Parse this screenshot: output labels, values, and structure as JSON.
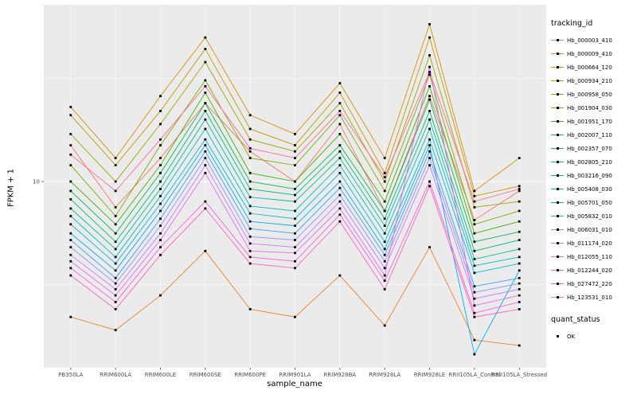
{
  "figure": {
    "panel_bg": "#EBEBEB",
    "grid_color": "#FFFFFF",
    "tick_label_color": "#4D4D4D",
    "point_color": "#000000"
  },
  "chart_data": {
    "type": "line",
    "title": "",
    "xlabel": "sample_name",
    "ylabel": "FPKM + 1",
    "y_scale": "log10",
    "grid": true,
    "legend_position": "right",
    "legend_color_title": "tracking_id",
    "legend_shape_title": "quant_status",
    "points_label": "OK",
    "y_major_ticks": [
      10
    ],
    "y_tick_labels": [
      "10"
    ],
    "y_minor_ticks": [
      3.162,
      31.623
    ],
    "ylim_log10": [
      0.096,
      1.858
    ],
    "categories": [
      "PB350LA",
      "RRIM600LA",
      "RRIM600LE",
      "RRIM600SE",
      "RRIM600PE",
      "RRIM901LA",
      "RRIM928BA",
      "RRIM928LA",
      "RRIM928LE",
      "RRII105LA_Control",
      "RRII105LA_Stressed"
    ],
    "series": [
      {
        "name": "Hb_000003_410",
        "color": "#F8766D",
        "values": [
          15,
          7.5,
          13,
          24,
          14,
          10,
          19,
          7.2,
          26,
          6.5,
          9
        ]
      },
      {
        "name": "Hb_000009_410",
        "color": "#EA8331",
        "values": [
          2.2,
          1.9,
          2.8,
          4.6,
          2.4,
          2.2,
          3.5,
          2.0,
          4.8,
          1.7,
          1.6
        ]
      },
      {
        "name": "Hb_000664_120",
        "color": "#D89000",
        "values": [
          23,
          13,
          26,
          50,
          21,
          17,
          30,
          13,
          58,
          9,
          13
        ]
      },
      {
        "name": "Hb_000934_210",
        "color": "#C09B00",
        "values": [
          21,
          12,
          22,
          44,
          18,
          15,
          27,
          11,
          50,
          8.5,
          9.5
        ]
      },
      {
        "name": "Hb_000958_050",
        "color": "#A3A500",
        "values": [
          17,
          10,
          19,
          38,
          16,
          14,
          24,
          10,
          41,
          7.5,
          8
        ]
      },
      {
        "name": "Hb_001904_030",
        "color": "#7CAE00",
        "values": [
          12,
          6.8,
          15,
          31,
          13,
          12,
          21,
          9,
          33,
          6.2,
          7.2
        ]
      },
      {
        "name": "Hb_001951_170",
        "color": "#39B600",
        "values": [
          10,
          6.2,
          12,
          27,
          11,
          10,
          17,
          8,
          29,
          5.6,
          6.4
        ]
      },
      {
        "name": "Hb_002007_110",
        "color": "#00BB4E",
        "values": [
          9,
          5.6,
          11,
          24,
          10,
          9.2,
          15,
          7.2,
          25,
          5.1,
          5.7
        ]
      },
      {
        "name": "Hb_002357_070",
        "color": "#00BF7D",
        "values": [
          8.2,
          5.1,
          10,
          22,
          9.2,
          8.6,
          14,
          6.6,
          22,
          4.6,
          5.2
        ]
      },
      {
        "name": "Hb_002805_210",
        "color": "#00C1A3",
        "values": [
          7.4,
          4.7,
          9.2,
          20,
          8.4,
          8,
          13,
          6.1,
          20,
          4.2,
          4.7
        ]
      },
      {
        "name": "Hb_003216_090",
        "color": "#00BFC4",
        "values": [
          6.8,
          4.3,
          8.5,
          18,
          7.6,
          7.2,
          12,
          5.6,
          18,
          3.9,
          4.3
        ]
      },
      {
        "name": "Hb_005408_030",
        "color": "#00BAE0",
        "values": [
          6.2,
          4.0,
          7.8,
          16,
          7,
          6.6,
          11,
          5.1,
          16,
          3.6,
          4.0
        ]
      },
      {
        "name": "Hb_005701_050",
        "color": "#00B0F6",
        "values": [
          5.6,
          3.7,
          7.2,
          15,
          6.4,
          6.1,
          10,
          4.7,
          15,
          1.45,
          3.7
        ]
      },
      {
        "name": "Hb_005832_010",
        "color": "#35A2FF",
        "values": [
          5.2,
          3.4,
          6.6,
          14,
          5.9,
          5.6,
          9.3,
          4.4,
          14,
          3.1,
          3.4
        ]
      },
      {
        "name": "Hb_006031_010",
        "color": "#9590FF",
        "values": [
          4.8,
          3.2,
          6.1,
          13,
          5.4,
          5.2,
          8.6,
          4.1,
          13,
          2.9,
          3.2
        ]
      },
      {
        "name": "Hb_011174_020",
        "color": "#C77CFF",
        "values": [
          4.4,
          3.0,
          5.6,
          12,
          5.0,
          4.8,
          8.0,
          3.8,
          12,
          2.7,
          3.0
        ]
      },
      {
        "name": "Hb_012055_110",
        "color": "#E76BF3",
        "values": [
          4.1,
          2.8,
          5.2,
          11,
          4.6,
          4.5,
          7.4,
          3.5,
          36,
          2.5,
          2.8
        ]
      },
      {
        "name": "Hb_012244_020",
        "color": "#FA62DB",
        "values": [
          3.8,
          2.6,
          4.8,
          8.0,
          4.3,
          4.1,
          6.9,
          3.3,
          10,
          2.3,
          2.6
        ]
      },
      {
        "name": "Hb_027472_220",
        "color": "#FF62BC",
        "values": [
          3.5,
          2.4,
          4.4,
          7.4,
          4.0,
          3.8,
          6.4,
          3.0,
          9.5,
          2.2,
          2.4
        ]
      },
      {
        "name": "Hb_123531_010",
        "color": "#FF6A98",
        "values": [
          13.5,
          9,
          16,
          29,
          14.5,
          13,
          22,
          10.5,
          34,
          8,
          9.2
        ]
      }
    ]
  }
}
